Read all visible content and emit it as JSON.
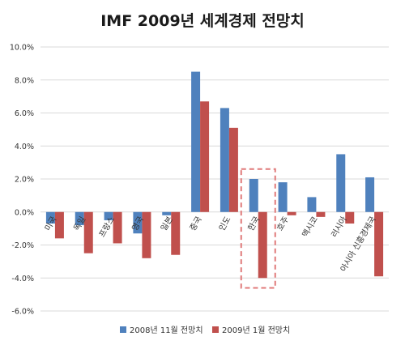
{
  "chart_data": {
    "type": "bar",
    "title": "IMF 2009년 세계경제 전망치",
    "categories": [
      "미국",
      "독일",
      "프랑스",
      "영국",
      "일본",
      "중국",
      "인도",
      "한국",
      "호주",
      "멕시코",
      "러시아",
      "아시아 신흥경제국"
    ],
    "series": [
      {
        "name": "2008년 11월 전망치",
        "values": [
          -0.7,
          -0.8,
          -0.5,
          -1.3,
          -0.2,
          8.5,
          6.3,
          2.0,
          1.8,
          0.9,
          3.5,
          2.1
        ]
      },
      {
        "name": "2009년 1월 전망치",
        "values": [
          -1.6,
          -2.5,
          -1.9,
          -2.8,
          -2.6,
          6.7,
          5.1,
          -4.0,
          -0.2,
          -0.3,
          -0.7,
          -3.9
        ]
      }
    ],
    "yticks": [
      "10.0%",
      "8.0%",
      "6.0%",
      "4.0%",
      "2.0%",
      "0.0%",
      "-2.0%",
      "-4.0%",
      "-6.0%"
    ],
    "ylim": [
      -6,
      10
    ],
    "grid": true,
    "legend_position": "bottom",
    "highlight_category": "한국",
    "colors": {
      "series1": "#4f81bd",
      "series2": "#c0504d",
      "grid": "#d9d9d9",
      "highlight": "#e07a7a"
    }
  }
}
